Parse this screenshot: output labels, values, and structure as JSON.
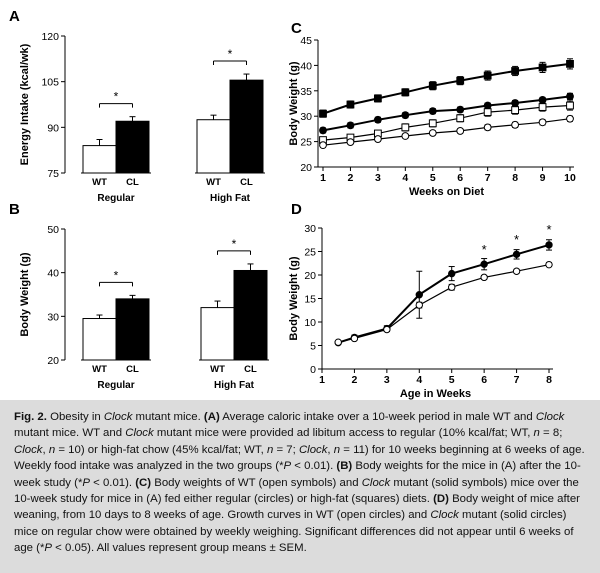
{
  "chart_data": [
    {
      "panel": "A",
      "type": "bar",
      "ylabel": "Energy Intake (kcal/wk)",
      "yticks": [
        75,
        90,
        105,
        120
      ],
      "ylim": [
        75,
        120
      ],
      "groups": [
        {
          "name": "Regular",
          "categories": [
            "WT",
            "CL"
          ],
          "values": [
            84,
            92
          ],
          "errors": [
            2,
            1.5
          ],
          "annotation": "*"
        },
        {
          "name": "High Fat",
          "categories": [
            "WT",
            "CL"
          ],
          "values": [
            92.5,
            105.5
          ],
          "errors": [
            1.5,
            2
          ],
          "annotation": "*"
        }
      ]
    },
    {
      "panel": "B",
      "type": "bar",
      "ylabel": "Body Weight (g)",
      "yticks": [
        20,
        30,
        40,
        50
      ],
      "ylim": [
        20,
        50
      ],
      "groups": [
        {
          "name": "Regular",
          "categories": [
            "WT",
            "CL"
          ],
          "values": [
            29.5,
            34
          ],
          "errors": [
            0.8,
            0.8
          ],
          "annotation": "*"
        },
        {
          "name": "High Fat",
          "categories": [
            "WT",
            "CL"
          ],
          "values": [
            32,
            40.5
          ],
          "errors": [
            1.5,
            1.5
          ],
          "annotation": "*"
        }
      ]
    },
    {
      "panel": "C",
      "type": "line",
      "xlabel": "Weeks on Diet",
      "ylabel": "Body Weight (g)",
      "x": [
        1,
        2,
        3,
        4,
        5,
        6,
        7,
        8,
        9,
        10
      ],
      "xlim": [
        1,
        10
      ],
      "ylim": [
        20,
        45
      ],
      "yticks": [
        20,
        25,
        30,
        35,
        40,
        45
      ],
      "series": [
        {
          "marker": "filled-square",
          "values": [
            30.5,
            32.3,
            33.5,
            34.7,
            36,
            37,
            38,
            38.9,
            39.6,
            40.3
          ],
          "errors": [
            0.7,
            0.7,
            0.7,
            0.7,
            0.8,
            0.8,
            0.9,
            0.9,
            1,
            1
          ]
        },
        {
          "marker": "filled-circle",
          "values": [
            27.2,
            28.2,
            29.3,
            30.2,
            31,
            31.3,
            32.1,
            32.6,
            33.2,
            33.9
          ],
          "errors": [
            0.5,
            0.5,
            0.5,
            0.5,
            0.5,
            0.5,
            0.5,
            0.5,
            0.5,
            0.6
          ]
        },
        {
          "marker": "open-square",
          "values": [
            25.3,
            25.8,
            26.6,
            27.8,
            28.6,
            29.6,
            30.8,
            31.2,
            31.8,
            32.1
          ],
          "errors": [
            0.6,
            0.6,
            0.6,
            0.7,
            0.7,
            0.7,
            0.8,
            0.8,
            0.8,
            0.9
          ]
        },
        {
          "marker": "open-circle",
          "values": [
            24.3,
            24.9,
            25.5,
            26.1,
            26.7,
            27.1,
            27.8,
            28.3,
            28.8,
            29.5
          ],
          "errors": [
            0.4,
            0.4,
            0.4,
            0.4,
            0.4,
            0.4,
            0.5,
            0.5,
            0.5,
            0.5
          ]
        }
      ]
    },
    {
      "panel": "D",
      "type": "line",
      "xlabel": "Age in Weeks",
      "ylabel": "Body Weight (g)",
      "xlim": [
        1,
        8
      ],
      "xticks": [
        1,
        2,
        3,
        4,
        5,
        6,
        7,
        8
      ],
      "ylim": [
        0,
        30
      ],
      "yticks": [
        0,
        5,
        10,
        15,
        20,
        25,
        30
      ],
      "series": [
        {
          "marker": "filled-circle",
          "x": [
            1.5,
            2,
            3,
            4,
            5,
            6,
            7,
            8
          ],
          "values": [
            5.6,
            6.7,
            8.6,
            15.8,
            20.3,
            22.3,
            24.4,
            26.4
          ],
          "errors": [
            0.3,
            0.5,
            0.6,
            5,
            1.5,
            1.2,
            1,
            1.1
          ]
        },
        {
          "marker": "open-circle",
          "x": [
            1.5,
            2,
            3,
            4,
            5,
            6,
            7,
            8
          ],
          "values": [
            5.7,
            6.5,
            8.4,
            13.6,
            17.4,
            19.5,
            20.8,
            22.2
          ],
          "errors": [
            0.2,
            0.3,
            0.4,
            0.6,
            0.6,
            0.4,
            0.4,
            0.4
          ]
        }
      ],
      "annotations": [
        {
          "x": 6,
          "y": 25.3,
          "text": "*"
        },
        {
          "x": 7,
          "y": 27.5,
          "text": "*"
        },
        {
          "x": 8,
          "y": 29.6,
          "text": "*"
        }
      ]
    }
  ],
  "caption": {
    "label": "Fig. 2.",
    "html": "Obesity in <i>Clock</i> mutant mice. <b>(A)</b> Average caloric intake over a 10-week period in male WT and <i>Clock</i> mutant mice. WT and <i>Clock</i> mutant mice were provided ad libitum access to regular (10% kcal/fat; WT, <i>n</i> = 8; <i>Clock</i>, <i>n</i> = 10) or high-fat chow (45% kcal/fat; WT, <i>n</i> = 7; <i>Clock</i>, <i>n</i> = 11) for 10 weeks beginning at 6 weeks of age. Weekly food intake was analyzed in the two groups (*<i>P</i> &lt; 0.01). <b>(B)</b> Body weights for the mice in (A) after the 10-week study (*<i>P</i> &lt; 0.01). <b>(C)</b> Body weights of WT (open symbols) and <i>Clock</i> mutant (solid symbols) mice over the 10-week study for mice in (A) fed either regular (circles) or high-fat (squares) diets. <b>(D)</b> Body weight of mice after weaning, from 10 days to 8 weeks of age. Growth curves in WT (open circles) and <i>Clock</i> mutant (solid circles) mice on regular chow were obtained by weekly weighing. Significant differences did not appear until 6 weeks of age (*<i>P</i> &lt; 0.05). All values represent group means ± SEM."
  }
}
